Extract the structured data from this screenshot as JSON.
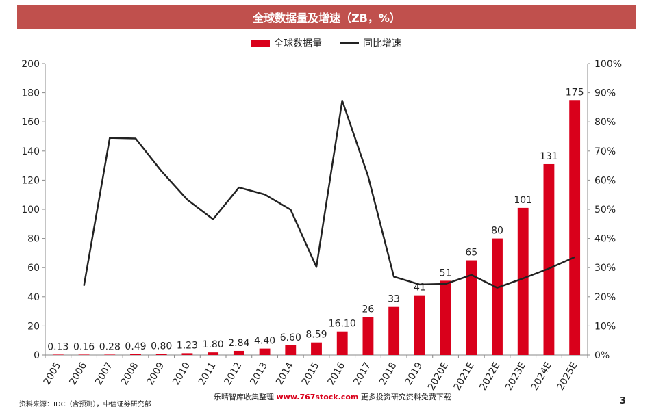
{
  "header": {
    "title": "全球数据量及增速（ZB，%）"
  },
  "legend": {
    "bar_label": "全球数据量",
    "line_label": "同比增速"
  },
  "colors": {
    "bar": "#d9001b",
    "line": "#222222",
    "title_bg": "#c0504d"
  },
  "footer": {
    "source": "资料来源：IDC（含预测），中信证券研究部",
    "watermark_prefix": "乐晴智库收集整理 ",
    "watermark_site": "www.767stock.com",
    "watermark_suffix": " 更多投资研究资料免费下载",
    "page": "3"
  },
  "chart_data": {
    "type": "bar",
    "categories": [
      "2005",
      "2006",
      "2007",
      "2008",
      "2009",
      "2010",
      "2011",
      "2012",
      "2013",
      "2014",
      "2015",
      "2016",
      "2017",
      "2018",
      "2019",
      "2020E",
      "2021E",
      "2022E",
      "2023E",
      "2024E",
      "2025E"
    ],
    "series": [
      {
        "name": "全球数据量",
        "type": "bar",
        "axis": "left",
        "values": [
          0.13,
          0.16,
          0.28,
          0.49,
          0.8,
          1.23,
          1.8,
          2.84,
          4.4,
          6.6,
          8.59,
          16.1,
          26,
          33,
          41,
          51,
          65,
          80,
          101,
          131,
          175
        ],
        "labels": [
          "0.13",
          "0.16",
          "0.28",
          "0.49",
          "0.80",
          "1.23",
          "1.80",
          "2.84",
          "4.40",
          "6.60",
          "8.59",
          "16.10",
          "26",
          "33",
          "41",
          "51",
          "65",
          "80",
          "101",
          "131",
          "175"
        ]
      },
      {
        "name": "同比增速",
        "type": "line",
        "axis": "right",
        "values": [
          null,
          23.8,
          74.5,
          74.3,
          63.1,
          53.3,
          46.6,
          57.5,
          55.1,
          49.9,
          30.2,
          87.3,
          61.4,
          26.9,
          24.2,
          24.4,
          27.5,
          23.1,
          26.3,
          29.7,
          33.6
        ]
      }
    ],
    "y_left": {
      "lim": [
        0,
        200
      ],
      "ticks": [
        "0",
        "20",
        "40",
        "60",
        "80",
        "100",
        "120",
        "140",
        "160",
        "180",
        "200"
      ]
    },
    "y_right": {
      "lim": [
        0,
        100
      ],
      "ticks": [
        "0%",
        "10%",
        "20%",
        "30%",
        "40%",
        "50%",
        "60%",
        "70%",
        "80%",
        "90%",
        "100%"
      ]
    },
    "grid": false,
    "legend_position": "top-center"
  }
}
